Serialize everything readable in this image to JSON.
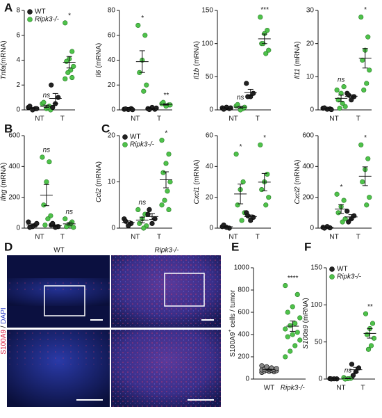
{
  "panel_labels": [
    "A",
    "B",
    "C",
    "D",
    "E",
    "F"
  ],
  "panel_d": {
    "columns": [
      "WT",
      "Ripk3-/-"
    ],
    "stain": [
      {
        "text": "S100A9",
        "color": "#d8163a"
      },
      {
        "text": " / "
      },
      {
        "text": "DAPI",
        "color": "#2e3fc6"
      }
    ]
  },
  "chart_data": [
    {
      "type": "dot",
      "ylabel": [
        {
          "text": "Tnfa",
          "style": "italic"
        },
        {
          "text": "(mRNA)"
        }
      ],
      "categories": [
        "NT",
        "T"
      ],
      "ylim": [
        0,
        8
      ],
      "yticks": [
        0,
        2,
        4,
        6,
        8
      ],
      "legend": "upper left",
      "series": [
        {
          "name": "WT",
          "color": "#222222",
          "values": [
            [
              0.2,
              0.1,
              0,
              0.3,
              0.1
            ],
            [
              2.0,
              1.0,
              0.5,
              0.2
            ]
          ]
        },
        {
          "name": "Ripk3-/-",
          "color": "#4ec24a",
          "values": [
            [
              0.5,
              0.3,
              0.1,
              0.6,
              0,
              0.2
            ],
            [
              7.0,
              4.7,
              4.1,
              3.9,
              3.5,
              3.2,
              3.0,
              2.5,
              2.6
            ]
          ]
        }
      ],
      "annotations": [
        "ns",
        "*"
      ]
    },
    {
      "type": "dot",
      "ylabel": [
        {
          "text": "Il6",
          "style": "italic"
        },
        {
          "text": " (mRNA)"
        }
      ],
      "categories": [
        "NT",
        "T"
      ],
      "ylim": [
        0,
        80
      ],
      "yticks": [
        0,
        20,
        40,
        60,
        80
      ],
      "series": [
        {
          "name": "WT",
          "color": "#222222",
          "values": [
            [
              0.5,
              1,
              0.3,
              0.8,
              0.2
            ],
            [
              1,
              0.5,
              2,
              0.3,
              1.5
            ]
          ]
        },
        {
          "name": "Ripk3-/-",
          "color": "#4ec24a",
          "values": [
            [
              68,
              60,
              40,
              30,
              20,
              15
            ],
            [
              5,
              4,
              3,
              6,
              4
            ]
          ]
        }
      ],
      "annotations": [
        "*",
        "**"
      ]
    },
    {
      "type": "dot",
      "ylabel": [
        {
          "text": "Il1b",
          "style": "italic"
        },
        {
          "text": " (mRNA)"
        }
      ],
      "categories": [
        "NT",
        "T"
      ],
      "ylim": [
        0,
        150
      ],
      "yticks": [
        0,
        50,
        100,
        150
      ],
      "series": [
        {
          "name": "WT",
          "color": "#222222",
          "values": [
            [
              3,
              2,
              4,
              1,
              3
            ],
            [
              40,
              25,
              20,
              20
            ]
          ]
        },
        {
          "name": "Ripk3-/-",
          "color": "#4ec24a",
          "values": [
            [
              6,
              2,
              0,
              8,
              4
            ],
            [
              140,
              120,
              115,
              100,
              90,
              85,
              100
            ]
          ]
        }
      ],
      "annotations": [
        "ns",
        "***"
      ]
    },
    {
      "type": "dot",
      "ylabel": [
        {
          "text": "Il11",
          "style": "italic"
        },
        {
          "text": " (mRNA)"
        }
      ],
      "categories": [
        "NT",
        "T"
      ],
      "ylim": [
        0,
        30
      ],
      "yticks": [
        0,
        10,
        20,
        30
      ],
      "series": [
        {
          "name": "WT",
          "color": "#222222",
          "values": [
            [
              0.5,
              0.3,
              0.2,
              0.6,
              0.1
            ],
            [
              5,
              4,
              3,
              4.5
            ]
          ]
        },
        {
          "name": "Ripk3-/-",
          "color": "#4ec24a",
          "values": [
            [
              6,
              7,
              5,
              3,
              1,
              2,
              0.5
            ],
            [
              28,
              22,
              18,
              15,
              12,
              8,
              6
            ]
          ]
        }
      ],
      "annotations": [
        "ns",
        "*"
      ]
    },
    {
      "type": "dot",
      "ylabel": [
        {
          "text": "Ifng",
          "style": "italic"
        },
        {
          "text": " (mRNA)"
        }
      ],
      "categories": [
        "NT",
        "T"
      ],
      "ylim": [
        0,
        600
      ],
      "yticks": [
        0,
        200,
        400,
        600
      ],
      "series": [
        {
          "name": "WT",
          "color": "#222222",
          "values": [
            [
              40,
              20,
              10,
              5,
              30
            ],
            [
              20,
              10,
              5,
              30
            ]
          ]
        },
        {
          "name": "Ripk3-/-",
          "color": "#4ec24a",
          "values": [
            [
              460,
              430,
              300,
              150,
              80,
              60,
              20
            ],
            [
              60,
              40,
              20,
              10,
              5,
              30
            ]
          ]
        }
      ],
      "annotations": [
        "ns",
        "ns"
      ]
    },
    {
      "type": "dot",
      "ylabel": [
        {
          "text": "Ccl2",
          "style": "italic"
        },
        {
          "text": " (mRNA)"
        }
      ],
      "categories": [
        "NT",
        "T"
      ],
      "ylim": [
        0,
        20
      ],
      "yticks": [
        0,
        10,
        20
      ],
      "legend": "upper left",
      "series": [
        {
          "name": "WT",
          "color": "#222222",
          "values": [
            [
              2,
              1,
              0.5,
              1.5
            ],
            [
              3,
              2,
              1,
              4
            ]
          ]
        },
        {
          "name": "Ripk3-/-",
          "color": "#4ec24a",
          "values": [
            [
              4,
              3,
              2,
              1,
              0.5,
              0
            ],
            [
              19,
              16,
              14,
              12,
              10,
              8,
              6,
              5,
              4
            ]
          ]
        }
      ],
      "annotations": [
        "ns",
        "*"
      ]
    },
    {
      "type": "dot",
      "ylabel": [
        {
          "text": "Cxcl1",
          "style": "italic"
        },
        {
          "text": " (mRNA)"
        }
      ],
      "categories": [
        "NT",
        "T"
      ],
      "ylim": [
        0,
        60
      ],
      "yticks": [
        0,
        20,
        40,
        60
      ],
      "series": [
        {
          "name": "WT",
          "color": "#222222",
          "values": [
            [
              1,
              0,
              0.5,
              2
            ],
            [
              10,
              7,
              5,
              8
            ]
          ]
        },
        {
          "name": "Ripk3-/-",
          "color": "#4ec24a",
          "values": [
            [
              48,
              30,
              25,
              15,
              10,
              5
            ],
            [
              54,
              35,
              30,
              25,
              20,
              15
            ]
          ]
        }
      ],
      "annotations": [
        "*",
        "*"
      ]
    },
    {
      "type": "dot",
      "ylabel": [
        {
          "text": "Cxcl2",
          "style": "italic"
        },
        {
          "text": " (mRNA)"
        }
      ],
      "categories": [
        "NT",
        "T"
      ],
      "ylim": [
        0,
        600
      ],
      "yticks": [
        0,
        200,
        400,
        600
      ],
      "series": [
        {
          "name": "WT",
          "color": "#222222",
          "values": [
            [
              5,
              2,
              10,
              0
            ],
            [
              110,
              80,
              60,
              40
            ]
          ]
        },
        {
          "name": "Ripk3-/-",
          "color": "#4ec24a",
          "values": [
            [
              220,
              180,
              140,
              100,
              60,
              40
            ],
            [
              540,
              450,
              380,
              300,
              200,
              150
            ]
          ]
        }
      ],
      "annotations": [
        "*",
        "*"
      ]
    },
    {
      "type": "dot",
      "ylabel": [
        {
          "text": "S100A9"
        },
        {
          "text": "+",
          "style": "sup"
        },
        {
          "text": " cells / tumor"
        }
      ],
      "categories": [
        "WT",
        "Ripk3-/-"
      ],
      "ylim": [
        0,
        1000
      ],
      "yticks": [
        0,
        200,
        400,
        600,
        800,
        1000
      ],
      "series": [
        {
          "name": "WT",
          "color": "#888888",
          "values": [
            [
              60,
              65,
              70,
              72,
              75,
              78,
              80,
              82,
              85,
              88,
              90,
              95,
              100,
              110,
              120
            ],
            null
          ]
        },
        {
          "name": "Ripk3-/-",
          "color": "#4ec24a",
          "values": [
            null,
            [
              840,
              760,
              650,
              600,
              550,
              500,
              480,
              450,
              420,
              400,
              380,
              350,
              300,
              250,
              200
            ]
          ]
        }
      ],
      "annotations": [
        null,
        "****"
      ]
    },
    {
      "type": "dot",
      "ylabel": [
        {
          "text": "S100a9",
          "style": "italic"
        },
        {
          "text": " (mRNA)"
        }
      ],
      "categories": [
        "NT",
        "T"
      ],
      "ylim": [
        0,
        150
      ],
      "yticks": [
        0,
        50,
        100,
        150
      ],
      "legend": "upper left",
      "series": [
        {
          "name": "WT",
          "color": "#222222",
          "values": [
            [
              0.5,
              0.2,
              0.3,
              0.1
            ],
            [
              20,
              15,
              10,
              5
            ]
          ]
        },
        {
          "name": "Ripk3-/-",
          "color": "#4ec24a",
          "values": [
            [
              2,
              1,
              0.5,
              0
            ],
            [
              88,
              75,
              68,
              60,
              55,
              45,
              40
            ]
          ]
        }
      ],
      "annotations": [
        "ns",
        "**"
      ]
    }
  ]
}
